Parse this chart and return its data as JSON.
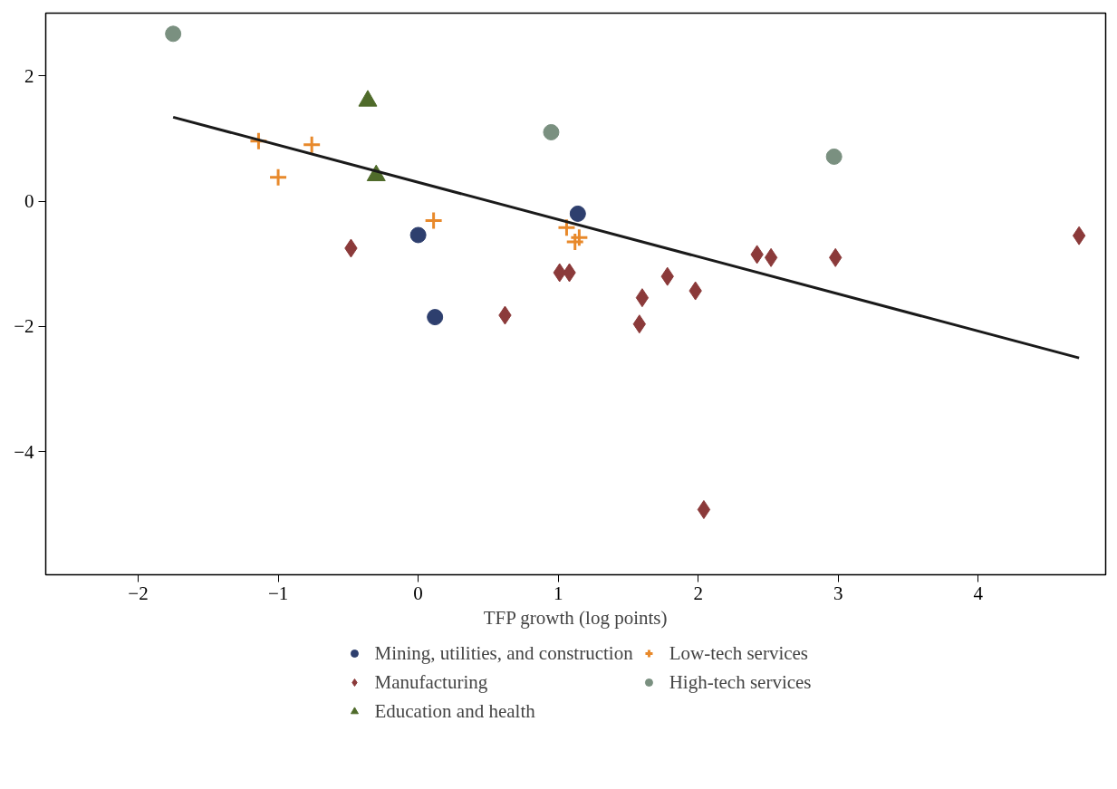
{
  "chart_data": {
    "type": "scatter",
    "xlabel": "TFP growth (log points)",
    "xlim": [
      -2.66,
      4.91
    ],
    "ylim": [
      -5.96,
      3.0
    ],
    "xticks": [
      {
        "value": -2,
        "label": "−2"
      },
      {
        "value": -1,
        "label": "−1"
      },
      0,
      1,
      2,
      3,
      4
    ],
    "yticks": [
      {
        "value": -4,
        "label": "−4"
      },
      {
        "value": -2,
        "label": "−2"
      },
      0,
      2
    ],
    "grid": false,
    "legend": "bottom",
    "series": [
      {
        "name": "Mining, utilities, and construction",
        "color": "#2e3f6e",
        "marker": "circle",
        "x": [
          0.0,
          0.12,
          1.14
        ],
        "values": [
          -0.54,
          -1.85,
          -0.2
        ]
      },
      {
        "name": "Manufacturing",
        "color": "#8b3a3a",
        "marker": "diamond",
        "x": [
          -0.48,
          0.62,
          1.01,
          1.08,
          1.58,
          1.6,
          1.78,
          1.98,
          2.04,
          2.42,
          2.52,
          2.98,
          4.72
        ],
        "values": [
          -0.75,
          -1.82,
          -1.14,
          -1.14,
          -1.96,
          -1.54,
          -1.2,
          -1.43,
          -4.92,
          -0.85,
          -0.9,
          -0.9,
          -0.55
        ]
      },
      {
        "name": "Education and health",
        "color": "#4f6b2a",
        "marker": "triangle",
        "x": [
          -0.36,
          -0.3
        ],
        "values": [
          1.6,
          0.41
        ]
      },
      {
        "name": "Low-tech services",
        "color": "#e8892b",
        "marker": "cross",
        "x": [
          -1.14,
          -1.0,
          -0.76,
          0.11,
          1.06,
          1.12,
          1.15
        ],
        "values": [
          0.96,
          0.38,
          0.9,
          -0.31,
          -0.42,
          -0.65,
          -0.58
        ]
      },
      {
        "name": "High-tech services",
        "color": "#7a9080",
        "marker": "circle",
        "x": [
          -1.75,
          0.95,
          2.97
        ],
        "values": [
          2.67,
          1.1,
          0.71
        ]
      },
      {
        "type": "line",
        "color": "#1a1a1a",
        "x": [
          -1.75,
          4.72
        ],
        "values": [
          1.34,
          -2.5
        ]
      }
    ]
  }
}
